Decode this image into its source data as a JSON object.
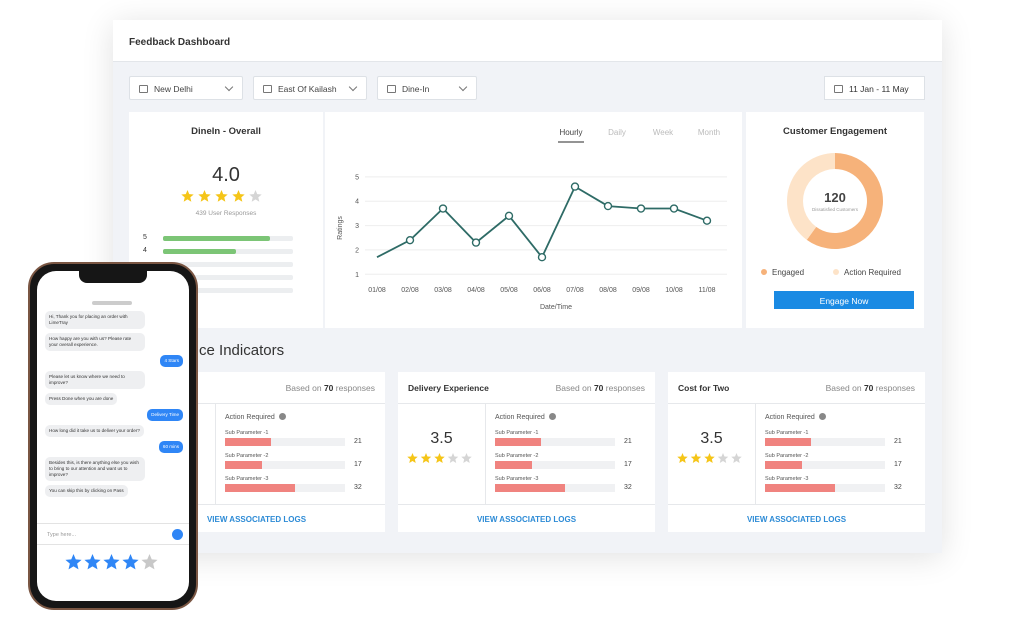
{
  "header": {
    "title": "Feedback Dashboard"
  },
  "filters": {
    "items": [
      "New Delhi",
      "East Of Kailash",
      "Dine-In"
    ],
    "date": "11 Jan - 11 May"
  },
  "overall": {
    "title": "DineIn - Overall",
    "rating": "4.0",
    "stars": 4,
    "responses": "439 User Responses",
    "distribution": [
      {
        "label": "5",
        "value": 82
      },
      {
        "label": "4",
        "value": 56
      },
      {
        "label": null,
        "value": 0
      },
      {
        "label": null,
        "value": 0
      },
      {
        "label": null,
        "value": 0
      }
    ]
  },
  "chart_data": {
    "type": "line",
    "tabs": [
      "Hourly",
      "Daily",
      "Week",
      "Month"
    ],
    "active_tab": 0,
    "y_label": "Ratings",
    "x_label": "Date/Time",
    "categories": [
      "01/08",
      "02/08",
      "03/08",
      "04/08",
      "05/08",
      "06/08",
      "07/08",
      "08/08",
      "09/08",
      "10/08",
      "11/08"
    ],
    "values": [
      1.7,
      2.4,
      3.7,
      2.3,
      3.4,
      1.7,
      4.6,
      3.8,
      3.7,
      3.7,
      3.2
    ],
    "color": "#2e6b66",
    "ylim": [
      0.6,
      5.2
    ],
    "yticks": [
      1,
      2,
      3,
      4,
      5
    ],
    "grid": true
  },
  "engagement": {
    "title": "Customer Engagement",
    "count": "120",
    "count_label": "Dissatisfied Customers",
    "chart": {
      "type": "pie",
      "categories": [
        "Engaged",
        "Action Required"
      ],
      "values": [
        60,
        40
      ],
      "colors": [
        "#f6b27a",
        "#fde3c8"
      ]
    },
    "button": "Engage Now"
  },
  "indicators": {
    "title": "Performance Indicators",
    "cards": [
      {
        "based_prefix": "Based on",
        "count": 70,
        "based_suffix": "responses",
        "action": "Action Required",
        "params": [
          {
            "name": "Sub Parameter -1",
            "value": 21
          },
          {
            "name": "Sub Parameter -2",
            "value": 17
          },
          {
            "name": "Sub Parameter -3",
            "value": 32
          }
        ],
        "link": "VIEW ASSOCIATED LOGS"
      },
      {
        "title": "Delivery Experience",
        "based_prefix": "Based on",
        "count": 70,
        "based_suffix": "responses",
        "rating": "3.5",
        "stars": 3,
        "action": "Action Required",
        "params": [
          {
            "name": "Sub Parameter -1",
            "value": 21
          },
          {
            "name": "Sub Parameter -2",
            "value": 17
          },
          {
            "name": "Sub Parameter -3",
            "value": 32
          }
        ],
        "link": "VIEW ASSOCIATED LOGS"
      },
      {
        "title": "Cost for Two",
        "based_prefix": "Based on",
        "count": 70,
        "based_suffix": "responses",
        "rating": "3.5",
        "stars": 3,
        "action": "Action Required",
        "params": [
          {
            "name": "Sub Parameter -1",
            "value": 21
          },
          {
            "name": "Sub Parameter -2",
            "value": 17
          },
          {
            "name": "Sub Parameter -3",
            "value": 32
          }
        ],
        "link": "VIEW ASSOCIATED LOGS"
      }
    ]
  },
  "phone": {
    "messages": [
      {
        "from": "bot",
        "text": "Hi, Thank you for placing an order with LimeTray"
      },
      {
        "from": "bot",
        "text": "How happy are you with us? Please rate your overall experience."
      },
      {
        "from": "user",
        "text": "4 Stars"
      },
      {
        "from": "bot",
        "text": "Please let us know where we need to improve?"
      },
      {
        "from": "bot",
        "text": "Press Done when you are done"
      },
      {
        "from": "user",
        "text": "Delivery Time"
      },
      {
        "from": "bot",
        "text": "How long did it take us to deliver your order?"
      },
      {
        "from": "user",
        "text": "60 mins"
      },
      {
        "from": "bot",
        "text": "Besides this, is there anything else you wish to bring to our attention and want us to improve?"
      },
      {
        "from": "bot",
        "text": "You can skip this by clicking on Pass"
      }
    ],
    "input": "Type here...",
    "stars": 4
  }
}
